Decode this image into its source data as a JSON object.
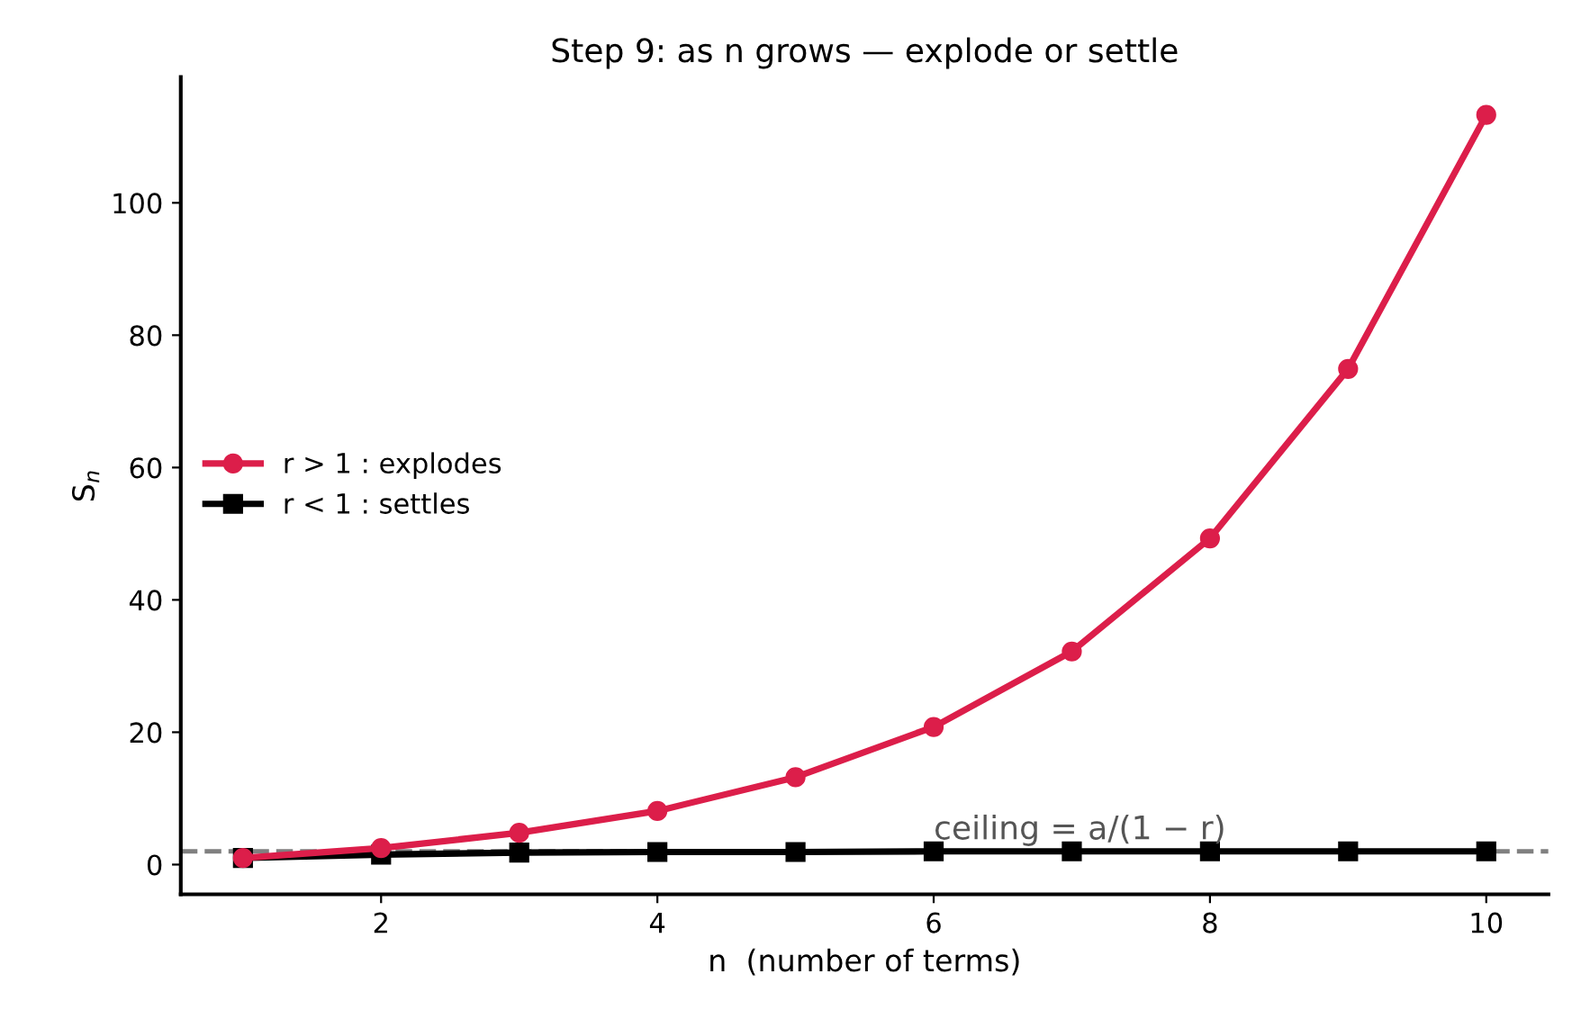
{
  "chart_data": {
    "type": "line",
    "title": "Step 9: as n grows — explode or settle",
    "xlabel": "n  (number of terms)",
    "ylabel": "S$_{n}$",
    "x": [
      1,
      2,
      3,
      4,
      5,
      6,
      7,
      8,
      9,
      10
    ],
    "series": [
      {
        "name": "r > 1 : explodes",
        "color": "#dc1e4a",
        "marker": "circle",
        "values": [
          1,
          2.5,
          4.8,
          8.1,
          13.2,
          20.8,
          32.2,
          49.3,
          74.9,
          113.3
        ]
      },
      {
        "name": "r < 1 : settles",
        "color": "#000000",
        "marker": "square",
        "values": [
          1,
          1.5,
          1.8,
          1.9,
          1.9,
          2,
          2,
          2,
          2,
          2
        ]
      }
    ],
    "ref_lines": [
      {
        "axis": "y",
        "value": 2,
        "label": "ceiling = a/(1 − r)",
        "color": "#808080",
        "line_style": "dashed"
      }
    ],
    "xlim": [
      0.55,
      10.45
    ],
    "xticks": [
      2,
      4,
      6,
      8,
      10
    ],
    "ylim": [
      -4.5,
      119
    ],
    "yticks": [
      0,
      20,
      40,
      60,
      80,
      100
    ],
    "grid": false,
    "legend": "left",
    "line_style": "solid"
  }
}
